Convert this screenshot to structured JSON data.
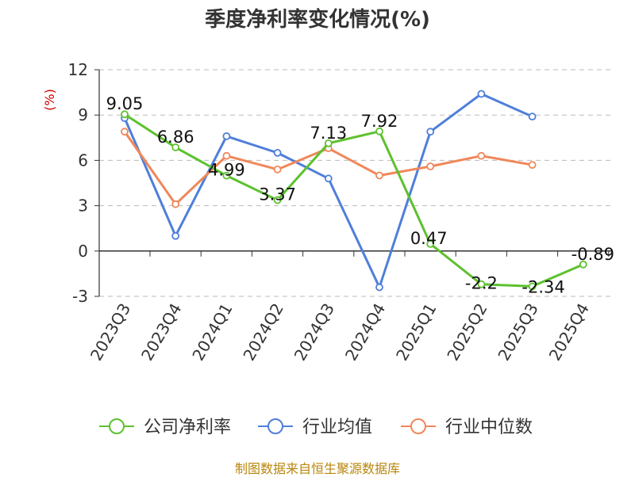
{
  "chart_data": {
    "type": "line",
    "title": "季度净利率变化情况(%)",
    "ylabel": "(%)",
    "categories": [
      "2023Q3",
      "2023Q4",
      "2024Q1",
      "2024Q2",
      "2024Q3",
      "2024Q4",
      "2025Q1",
      "2025Q2",
      "2025Q3",
      "2025Q4"
    ],
    "ylim": [
      -3,
      12
    ],
    "yticks": [
      -3,
      0,
      3,
      6,
      9,
      12
    ],
    "grid": true,
    "legend_position": "bottom",
    "series": [
      {
        "name": "公司净利率",
        "color": "#5dc12e",
        "values": [
          9.05,
          6.86,
          4.99,
          3.37,
          7.13,
          7.92,
          0.47,
          -2.2,
          -2.34,
          -0.89
        ],
        "show_labels": true
      },
      {
        "name": "行业均值",
        "color": "#4f7fda",
        "values": [
          8.8,
          1.0,
          7.6,
          6.5,
          4.8,
          -2.4,
          7.9,
          10.4,
          8.9,
          null
        ],
        "show_labels": false
      },
      {
        "name": "行业中位数",
        "color": "#f0875a",
        "values": [
          7.9,
          3.1,
          6.3,
          5.4,
          6.8,
          5.0,
          5.6,
          6.3,
          5.7,
          null
        ],
        "show_labels": false
      }
    ]
  },
  "footer": "制图数据来自恒生聚源数据库"
}
